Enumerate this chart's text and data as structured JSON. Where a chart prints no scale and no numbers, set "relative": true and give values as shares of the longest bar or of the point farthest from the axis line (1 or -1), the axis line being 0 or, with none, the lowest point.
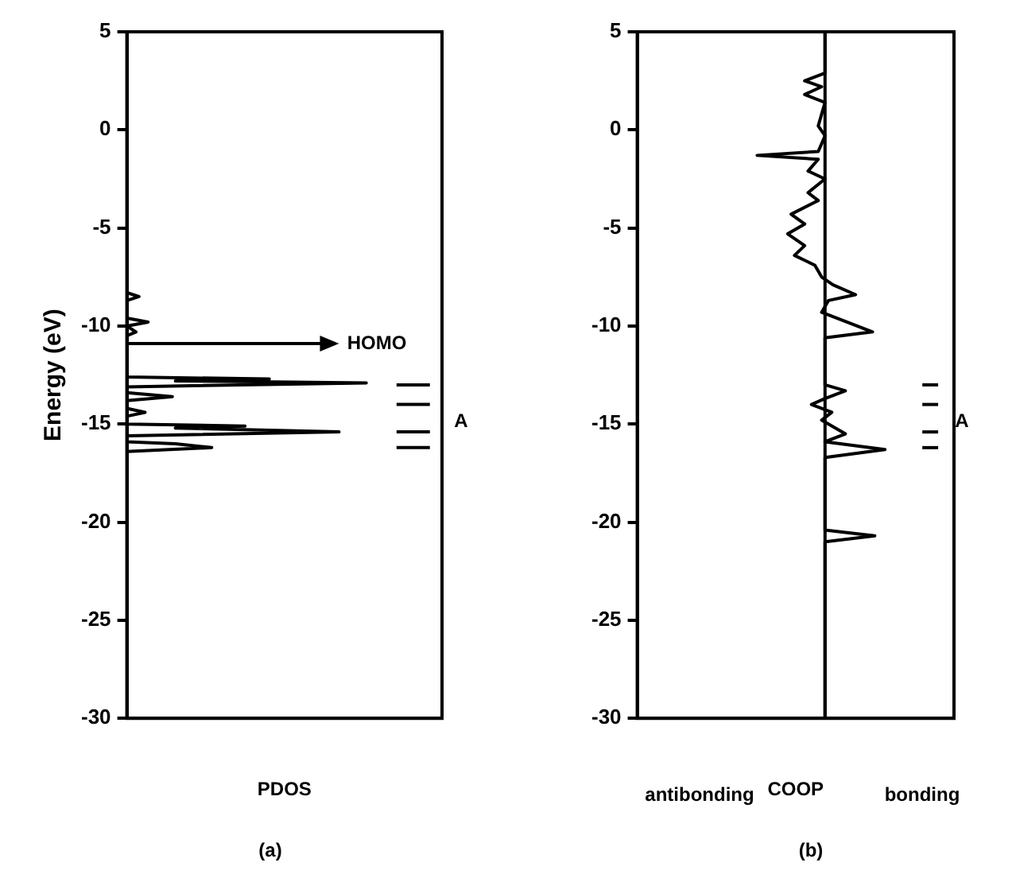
{
  "chart_data": [
    {
      "type": "line",
      "orientation": "horizontal",
      "relative": true,
      "xlabel": "PDOS",
      "ylabel": "Energy (eV)",
      "ylim": [
        -30,
        5
      ],
      "yticks": [
        -30,
        -25,
        -20,
        -15,
        -10,
        -5,
        0,
        5
      ],
      "tick_labels": "y",
      "series": [
        {
          "color": "#000000",
          "x": [
            5,
            -8.3,
            -8.5,
            -8.7,
            -9.6,
            -9.8,
            -10.0,
            -10.3,
            -10.5,
            -12.6,
            -12.7,
            -12.8,
            -12.9,
            -13.1,
            -13.4,
            -13.6,
            -13.8,
            -14.2,
            -14.4,
            -14.6,
            -15.0,
            -15.1,
            -15.2,
            -15.4,
            -15.6,
            -15.9,
            -16.0,
            -16.2,
            -16.4,
            -30
          ],
          "values": [
            0,
            0,
            0.04,
            0,
            0,
            0.07,
            0,
            0.03,
            0,
            0,
            0.47,
            0.16,
            0.79,
            0,
            0,
            0.15,
            0,
            0,
            0.06,
            0,
            0,
            0.39,
            0.16,
            0.7,
            0,
            0,
            0.16,
            0.28,
            0,
            0
          ]
        },
        {
          "color": "#000000",
          "x": [
            -13.0,
            -13.0
          ],
          "values": [
            0.89,
            1
          ]
        },
        {
          "color": "#000000",
          "x": [
            -14.0,
            -14.0
          ],
          "values": [
            0.89,
            1
          ]
        },
        {
          "color": "#000000",
          "x": [
            -15.4,
            -15.4
          ],
          "values": [
            0.89,
            1
          ]
        },
        {
          "color": "#000000",
          "x": [
            -16.2,
            -16.2
          ],
          "values": [
            0.89,
            1
          ]
        }
      ],
      "annotations": [
        "HOMO",
        "A",
        "(a)"
      ]
    },
    {
      "type": "line",
      "orientation": "horizontal",
      "relative": true,
      "xlabel": "COOP",
      "ylim": [
        -30,
        5
      ],
      "yticks": [
        -30,
        -25,
        -20,
        -15,
        -10,
        -5,
        0,
        5
      ],
      "tick_labels": "y",
      "series": [
        {
          "color": "#000000",
          "x": [
            5,
            2.9,
            2.5,
            2.2,
            1.8,
            1.4,
            0.2,
            -0.3,
            -1.1,
            -1.3,
            -1.5,
            -2.1,
            -2.5,
            -3.2,
            -3.6,
            -4.3,
            -4.8,
            -5.3,
            -5.9,
            -6.4,
            -6.9,
            -7.5,
            -7.9,
            -8.4,
            -8.7,
            -9.3,
            -10.3,
            -10.6,
            -13.0,
            -13.3,
            -13.7,
            -14.0,
            -14.4,
            -14.8,
            -15.5,
            -15.9,
            -16.3,
            -16.7,
            -20.4,
            -20.7,
            -21.0,
            -30
          ],
          "values": [
            0,
            0,
            -0.18,
            -0.03,
            -0.18,
            0,
            -0.06,
            0,
            -0.06,
            -0.6,
            -0.06,
            -0.15,
            0,
            -0.15,
            -0.06,
            -0.3,
            -0.18,
            -0.33,
            -0.18,
            -0.27,
            -0.09,
            -0.03,
            0.07,
            0.27,
            0.03,
            -0.03,
            0.42,
            0,
            0,
            0.18,
            0,
            -0.12,
            0.06,
            -0.03,
            0.18,
            0,
            0.53,
            0,
            0,
            0.44,
            0,
            0
          ]
        },
        {
          "color": "#000000",
          "x": [
            -13.0,
            -13.0
          ],
          "values": [
            0.86,
            1
          ]
        },
        {
          "color": "#000000",
          "x": [
            -14.0,
            -14.0
          ],
          "values": [
            0.86,
            1
          ]
        },
        {
          "color": "#000000",
          "x": [
            -15.4,
            -15.4
          ],
          "values": [
            0.86,
            1
          ]
        },
        {
          "color": "#000000",
          "x": [
            -16.2,
            -16.2
          ],
          "values": [
            0.86,
            1
          ]
        }
      ],
      "ref_lines": [
        {
          "axis": "x",
          "value": 0
        }
      ],
      "annotations": [
        "A",
        "antibonding",
        "bonding",
        "(b)"
      ]
    }
  ]
}
